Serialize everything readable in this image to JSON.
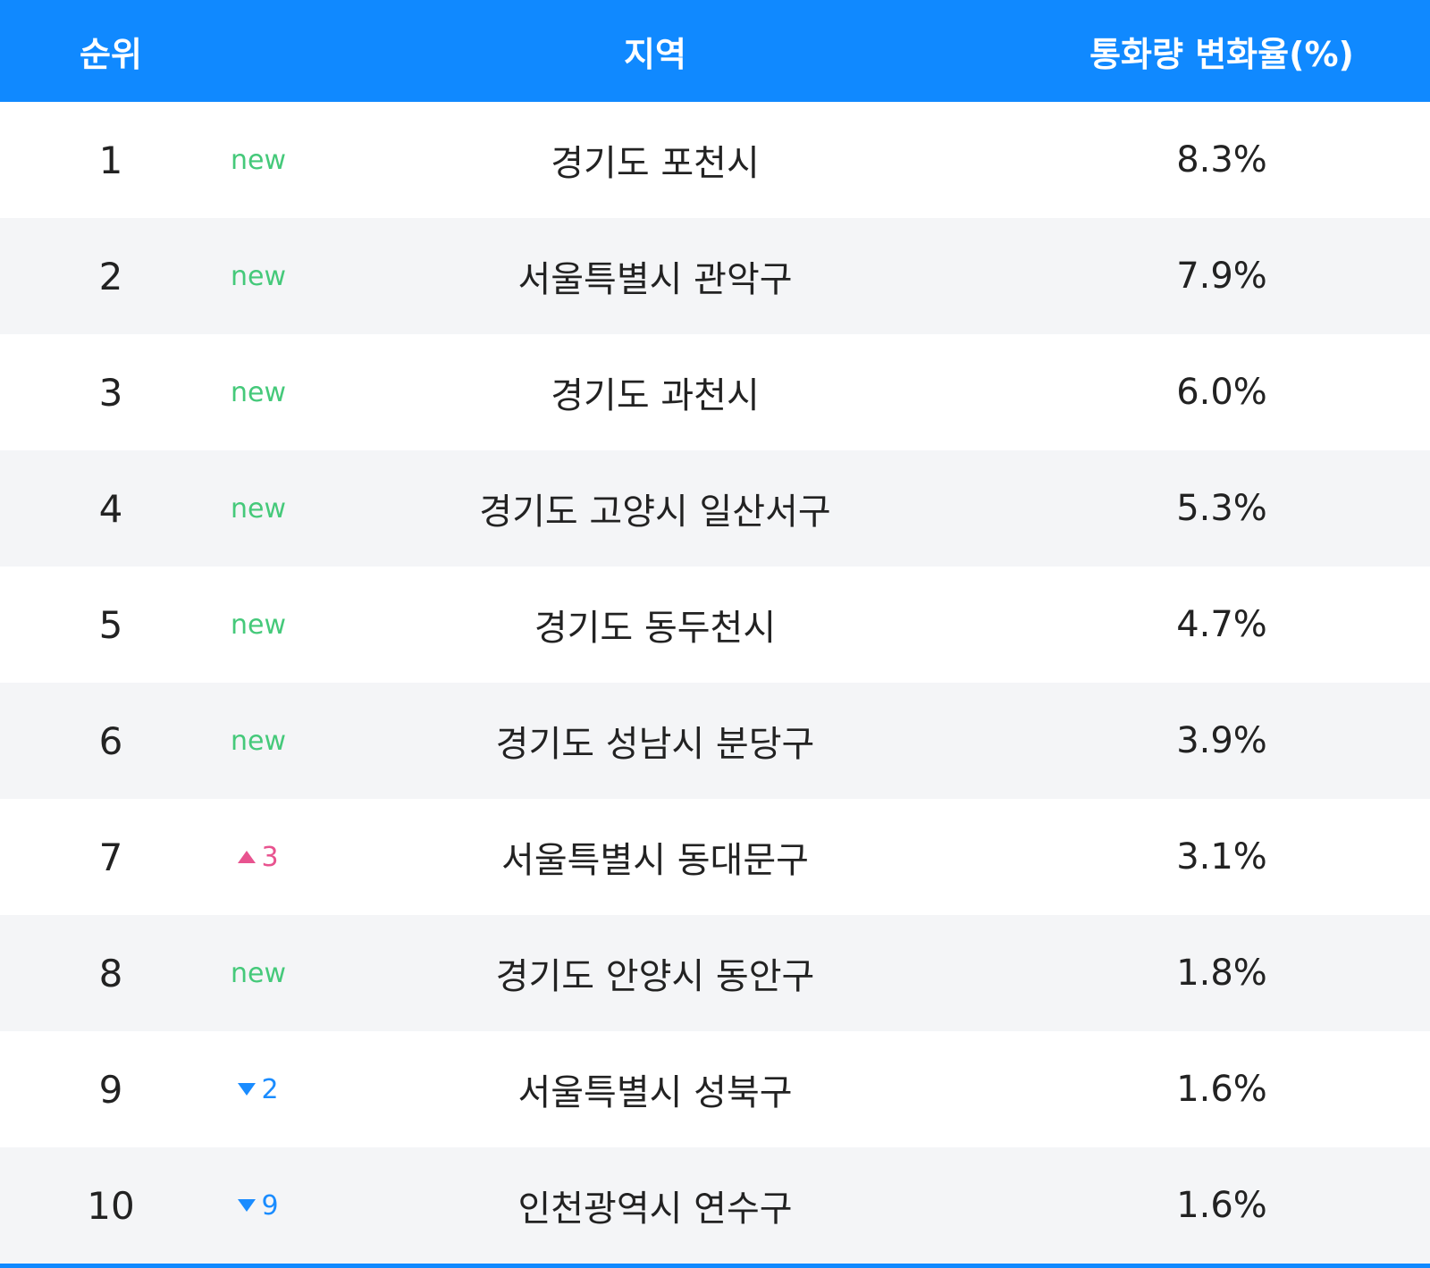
{
  "header": [
    "순위",
    "지역",
    "통화량 변화율(%)"
  ],
  "rows": [
    {
      "rank": "1",
      "change": "new",
      "region": "경기도 포천시",
      "value": "8.3%"
    },
    {
      "rank": "2",
      "change": "new",
      "region": "서울특별시 관악구",
      "value": "7.9%"
    },
    {
      "rank": "3",
      "change": "new",
      "region": "경기도 과천시",
      "value": "6.0%"
    },
    {
      "rank": "4",
      "change": "new",
      "region": "경기도 고양시 일산서구",
      "value": "5.3%"
    },
    {
      "rank": "5",
      "change": "new",
      "region": "경기도 동두천시",
      "value": "4.7%"
    },
    {
      "rank": "6",
      "change": "new",
      "region": "경기도 성남시 분당구",
      "value": "3.9%"
    },
    {
      "rank": "7",
      "change": "3",
      "trend": "up",
      "region": "서울특별시 동대문구",
      "value": "3.1%"
    },
    {
      "rank": "8",
      "change": "new",
      "region": "경기도 안양시 동안구",
      "value": "1.8%"
    },
    {
      "rank": "9",
      "change": "2",
      "trend": "down",
      "region": "서울특별시 성북구",
      "value": "1.6%"
    },
    {
      "rank": "10",
      "change": "9",
      "trend": "down",
      "region": "인천광역시 연수구",
      "value": "1.6%"
    }
  ]
}
